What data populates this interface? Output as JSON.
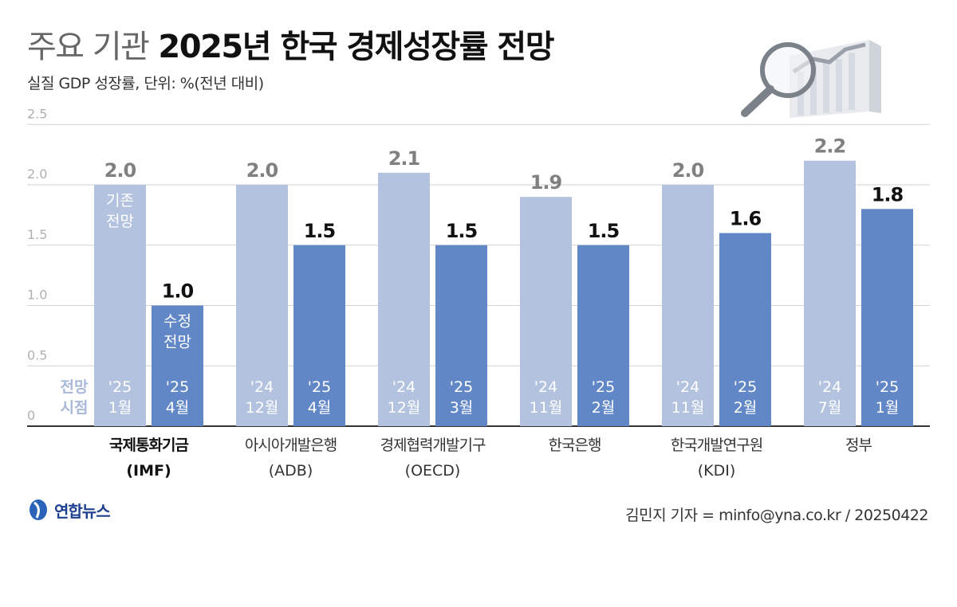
{
  "title": {
    "light": "주요 기관",
    "bold": "2025년 한국 경제성장률 전망"
  },
  "subtitle": "실질 GDP 성장률, 단위: %(전년 대비)",
  "colors": {
    "previous": "#b3c2de",
    "revised": "#6287c6",
    "label_prev": "#808080",
    "label_rev": "#111111",
    "inbar_text": "#ffffff",
    "legend_text": "#a8b8d8"
  },
  "legend_bar_labels": {
    "previous": "기존 전망",
    "revised": "수정 전망"
  },
  "date_axis_label": "전망 시점",
  "footer": {
    "logo": "연합뉴스",
    "credit": "김민지 기자 = minfo@yna.co.kr / 20250422"
  },
  "icons": {
    "logo": "yonhap-logo-icon",
    "decoration": "magnifier-chart-icon"
  },
  "chart_data": {
    "type": "bar",
    "ylim": [
      0,
      2.5
    ],
    "yticks": [
      "0",
      "0.5",
      "1.0",
      "1.5",
      "2.0",
      "2.5"
    ],
    "grid": true,
    "categories": [
      {
        "name": "국제통화기금",
        "abbr": "(IMF)",
        "highlight": true
      },
      {
        "name": "아시아개발은행",
        "abbr": "(ADB)",
        "highlight": false
      },
      {
        "name": "경제협력개발기구",
        "abbr": "(OECD)",
        "highlight": false
      },
      {
        "name": "한국은행",
        "abbr": "",
        "highlight": false
      },
      {
        "name": "한국개발연구원",
        "abbr": "(KDI)",
        "highlight": false
      },
      {
        "name": "정부",
        "abbr": "",
        "highlight": false
      }
    ],
    "series": [
      {
        "role": "previous",
        "values": [
          2.0,
          2.0,
          2.1,
          1.9,
          2.0,
          2.2
        ],
        "value_labels": [
          "2.0",
          "2.0",
          "2.1",
          "1.9",
          "2.0",
          "2.2"
        ],
        "dates": [
          [
            "'25",
            "1월"
          ],
          [
            "'24",
            "12월"
          ],
          [
            "'24",
            "12월"
          ],
          [
            "'24",
            "11월"
          ],
          [
            "'24",
            "11월"
          ],
          [
            "'24",
            "7월"
          ]
        ]
      },
      {
        "role": "revised",
        "values": [
          1.0,
          1.5,
          1.5,
          1.5,
          1.6,
          1.8
        ],
        "value_labels": [
          "1.0",
          "1.5",
          "1.5",
          "1.5",
          "1.6",
          "1.8"
        ],
        "dates": [
          [
            "'25",
            "4월"
          ],
          [
            "'25",
            "4월"
          ],
          [
            "'25",
            "3월"
          ],
          [
            "'25",
            "2월"
          ],
          [
            "'25",
            "2월"
          ],
          [
            "'25",
            "1월"
          ]
        ]
      }
    ]
  }
}
